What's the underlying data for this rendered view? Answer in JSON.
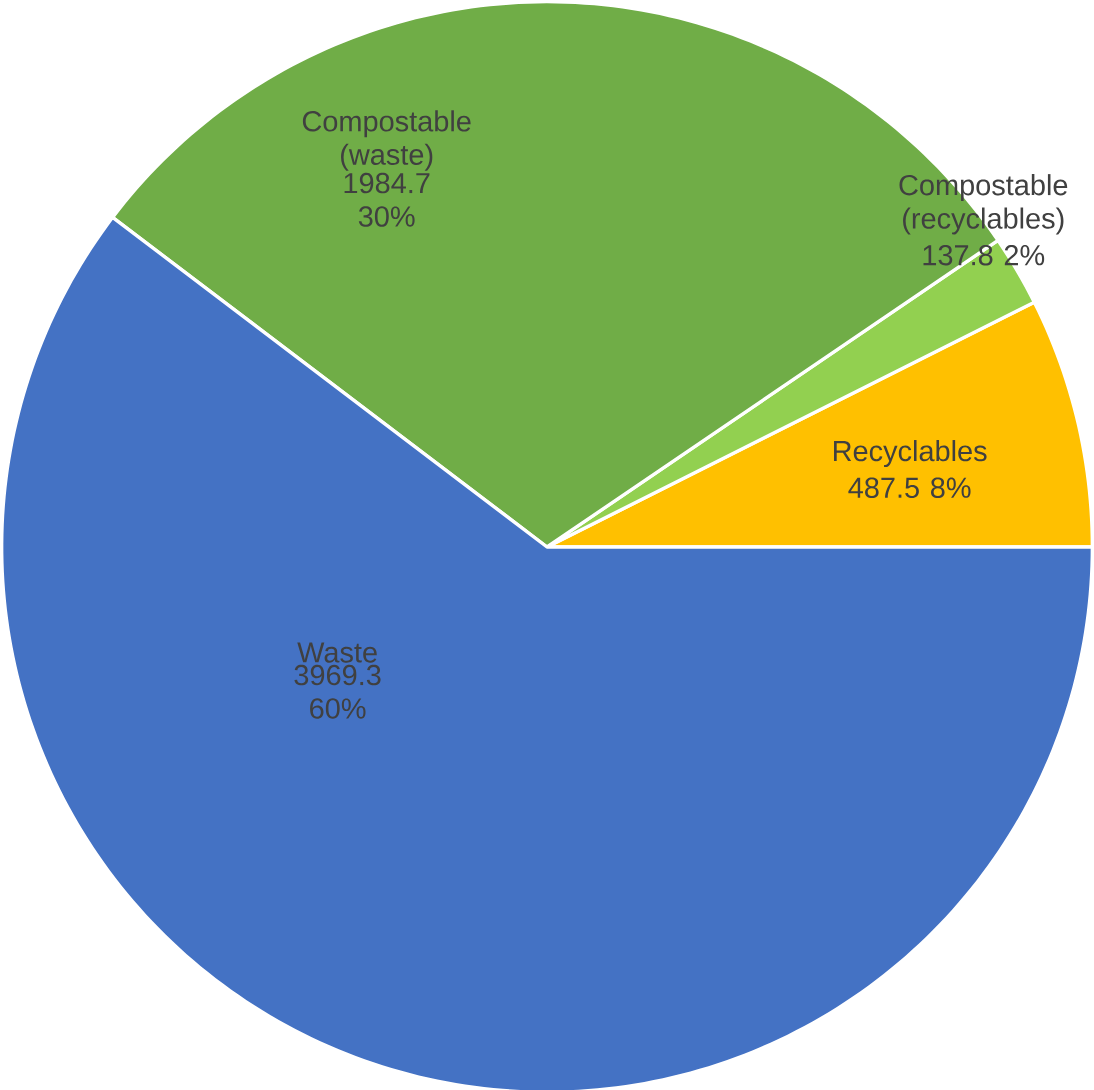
{
  "chart_data": {
    "type": "pie",
    "categories": [
      "Recyclables",
      "Compostable (recyclables)",
      "Compostable (waste)",
      "Waste"
    ],
    "values": [
      487.5,
      137.8,
      1984.7,
      3969.3
    ],
    "value_labels": [
      "487.5 8%",
      "137.8 2%",
      "1984.7 30%",
      "3969.3 60%"
    ],
    "colors": [
      "#ffc000",
      "#92d050",
      "#70ad47",
      "#4472c4"
    ]
  }
}
